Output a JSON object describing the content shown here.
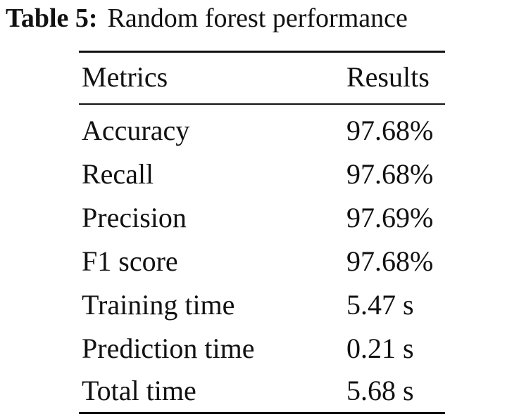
{
  "caption": {
    "label": "Table 5:",
    "title": "Random forest performance"
  },
  "table": {
    "headers": {
      "metric": "Metrics",
      "result": "Results"
    },
    "rows": [
      {
        "metric": "Accuracy",
        "result": "97.68%"
      },
      {
        "metric": "Recall",
        "result": "97.68%"
      },
      {
        "metric": "Precision",
        "result": "97.69%"
      },
      {
        "metric": "F1 score",
        "result": "97.68%"
      },
      {
        "metric": "Training time",
        "result": "5.47 s"
      },
      {
        "metric": "Prediction time",
        "result": "0.21 s"
      },
      {
        "metric": "Total time",
        "result": "5.68 s"
      }
    ]
  }
}
